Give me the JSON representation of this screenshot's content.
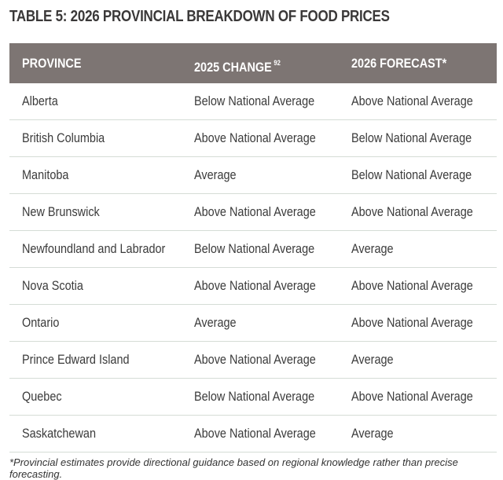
{
  "title": "TABLE 5: 2026 PROVINCIAL BREAKDOWN OF FOOD PRICES",
  "table": {
    "headers": [
      "PROVINCE",
      "2025 CHANGE",
      "2026 FORECAST*"
    ],
    "header_note": "92",
    "rows": [
      [
        "Alberta",
        "Below National Average",
        "Above National Average"
      ],
      [
        "British Columbia",
        "Above National Average",
        "Below National Average"
      ],
      [
        "Manitoba",
        "Average",
        "Below National Average"
      ],
      [
        "New Brunswick",
        "Above National Average",
        "Above National Average"
      ],
      [
        "Newfoundland and Labrador",
        "Below National Average",
        "Average"
      ],
      [
        "Nova Scotia",
        "Above National Average",
        "Above National Average"
      ],
      [
        "Ontario",
        "Average",
        "Above National Average"
      ],
      [
        "Prince Edward Island",
        "Above National Average",
        "Average"
      ],
      [
        "Quebec",
        "Below National Average",
        "Above National Average"
      ],
      [
        "Saskatchewan",
        "Above National Average",
        "Average"
      ]
    ]
  },
  "footnote": "*Provincial estimates provide directional guidance based on regional knowledge rather than precise forecasting."
}
